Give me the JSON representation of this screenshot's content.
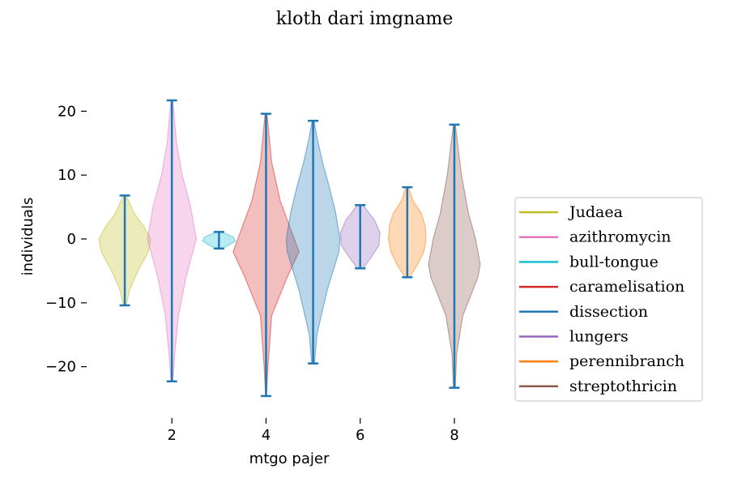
{
  "chart_data": {
    "type": "violin",
    "title": "kloth dari imgname",
    "xlabel": "mtgo pajer",
    "ylabel": "individuals",
    "xlim": [
      0.5,
      8.5
    ],
    "ylim": [
      -26,
      26
    ],
    "xticks": [
      2,
      4,
      6,
      8
    ],
    "yticks": [
      -20,
      -10,
      0,
      10,
      20
    ],
    "ytick_labels": [
      "−20",
      "−10",
      "0",
      "10",
      "20"
    ],
    "grid": false,
    "legend_position": "center-right",
    "errorbar_color": "#1f77b4",
    "series": [
      {
        "name": "Judaea",
        "color": "#bcbd22",
        "position": 1,
        "min": -10.4,
        "max": 6.8,
        "shape": [
          [
            -10.4,
            0.03
          ],
          [
            -8,
            0.1
          ],
          [
            -5,
            0.28
          ],
          [
            -2,
            0.5
          ],
          [
            0,
            0.55
          ],
          [
            2,
            0.4
          ],
          [
            4,
            0.2
          ],
          [
            6.8,
            0.03
          ]
        ]
      },
      {
        "name": "azithromycin",
        "color": "#e377c2",
        "position": 2,
        "min": -22.3,
        "max": 21.7,
        "shape": [
          [
            -22.3,
            0.02
          ],
          [
            -18,
            0.06
          ],
          [
            -12,
            0.14
          ],
          [
            -6,
            0.3
          ],
          [
            0,
            0.52
          ],
          [
            5,
            0.4
          ],
          [
            10,
            0.22
          ],
          [
            15,
            0.1
          ],
          [
            21.7,
            0.02
          ]
        ]
      },
      {
        "name": "bull-tongue",
        "color": "#17becf",
        "position": 3,
        "min": -1.5,
        "max": 1.1,
        "shape": [
          [
            -1.5,
            0.06
          ],
          [
            -1,
            0.2
          ],
          [
            -0.3,
            0.35
          ],
          [
            0.3,
            0.3
          ],
          [
            0.8,
            0.15
          ],
          [
            1.1,
            0.05
          ]
        ]
      },
      {
        "name": "caramelisation",
        "color": "#d62728",
        "position": 4,
        "min": -24.6,
        "max": 19.6,
        "shape": [
          [
            -24.6,
            0.01
          ],
          [
            -20,
            0.04
          ],
          [
            -12,
            0.12
          ],
          [
            -6,
            0.45
          ],
          [
            -2,
            0.7
          ],
          [
            2,
            0.5
          ],
          [
            6,
            0.3
          ],
          [
            12,
            0.12
          ],
          [
            19.6,
            0.02
          ]
        ]
      },
      {
        "name": "dissection",
        "color": "#1f77b4",
        "position": 5,
        "min": -19.5,
        "max": 18.5,
        "shape": [
          [
            -19.5,
            0.03
          ],
          [
            -15,
            0.08
          ],
          [
            -8,
            0.3
          ],
          [
            -2,
            0.55
          ],
          [
            0,
            0.57
          ],
          [
            4,
            0.48
          ],
          [
            8,
            0.35
          ],
          [
            12,
            0.2
          ],
          [
            16,
            0.08
          ],
          [
            18.5,
            0.02
          ]
        ]
      },
      {
        "name": "lungers",
        "color": "#9467bd",
        "position": 6,
        "min": -4.6,
        "max": 5.3,
        "shape": [
          [
            -4.6,
            0.06
          ],
          [
            -3,
            0.22
          ],
          [
            -1,
            0.4
          ],
          [
            1,
            0.42
          ],
          [
            3,
            0.3
          ],
          [
            5.3,
            0.06
          ]
        ]
      },
      {
        "name": "perennibranch",
        "color": "#ff7f0e",
        "position": 7,
        "min": -6.0,
        "max": 8.1,
        "shape": [
          [
            -6,
            0.05
          ],
          [
            -4,
            0.22
          ],
          [
            -2,
            0.35
          ],
          [
            0,
            0.4
          ],
          [
            2,
            0.38
          ],
          [
            4,
            0.3
          ],
          [
            6,
            0.12
          ],
          [
            8.1,
            0.03
          ]
        ]
      },
      {
        "name": "streptothricin",
        "color": "#8c564b",
        "position": 8,
        "min": -23.3,
        "max": 17.9,
        "shape": [
          [
            -23.3,
            0.02
          ],
          [
            -18,
            0.05
          ],
          [
            -12,
            0.18
          ],
          [
            -6,
            0.5
          ],
          [
            -4,
            0.55
          ],
          [
            0,
            0.45
          ],
          [
            4,
            0.3
          ],
          [
            10,
            0.15
          ],
          [
            17.9,
            0.02
          ]
        ]
      }
    ]
  }
}
